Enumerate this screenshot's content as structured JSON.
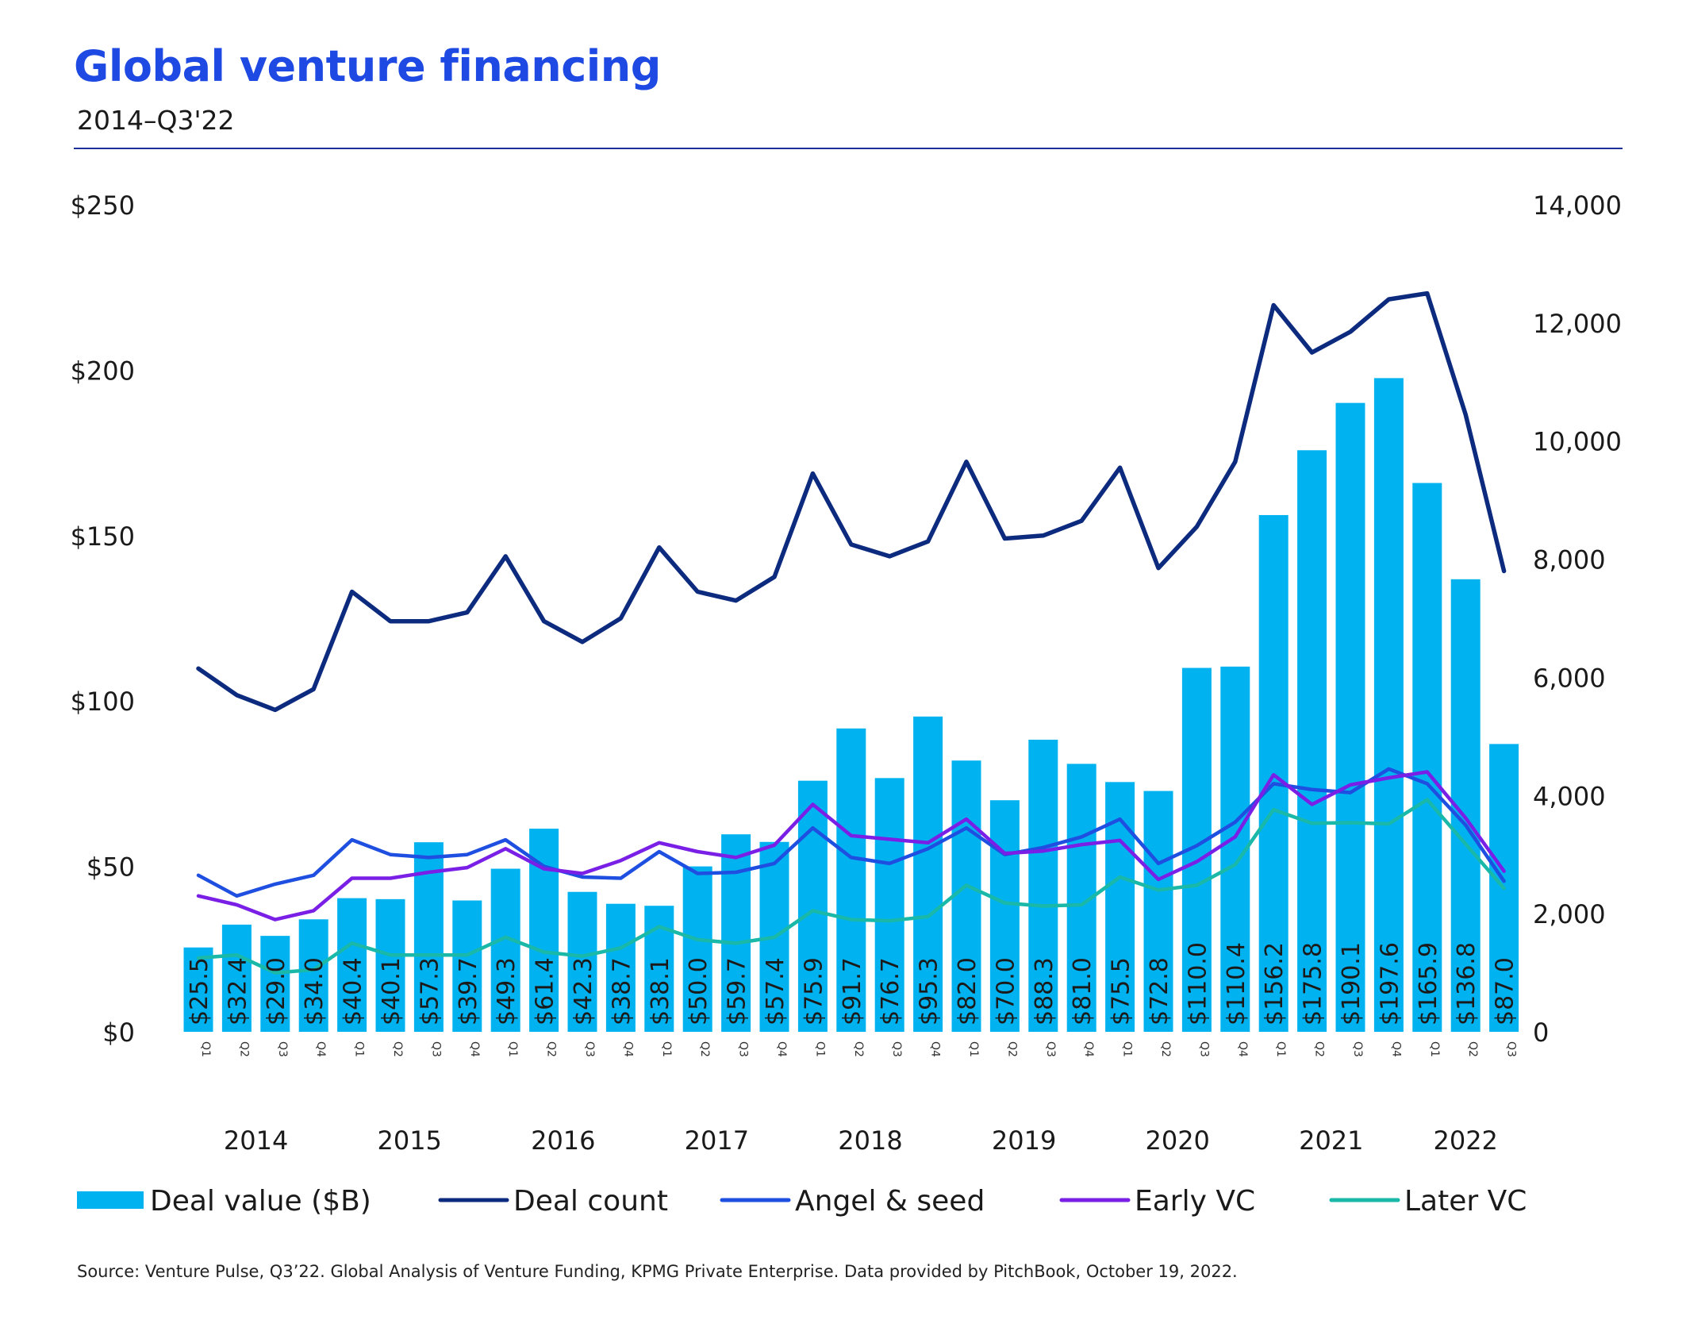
{
  "header": {
    "title": "Global venture financing",
    "subtitle": "2014–Q3'22"
  },
  "footer": {
    "source": "Source: Venture Pulse, Q3’22. Global Analysis of Venture Funding, KPMG Private Enterprise. Data provided by PitchBook, October 19, 2022."
  },
  "colors": {
    "bar": "#00b3f0",
    "deal_count": "#0c2a7e",
    "angel_seed": "#1e4fe0",
    "early_vc": "#7a1fe6",
    "later_vc": "#19b8a8"
  },
  "chart_data": {
    "type": "bar",
    "quarters": [
      "Q1",
      "Q2",
      "Q3",
      "Q4",
      "Q1",
      "Q2",
      "Q3",
      "Q4",
      "Q1",
      "Q2",
      "Q3",
      "Q4",
      "Q1",
      "Q2",
      "Q3",
      "Q4",
      "Q1",
      "Q2",
      "Q3",
      "Q4",
      "Q1",
      "Q2",
      "Q3",
      "Q4",
      "Q1",
      "Q2",
      "Q3",
      "Q4",
      "Q1",
      "Q2",
      "Q3",
      "Q4",
      "Q1",
      "Q2",
      "Q3"
    ],
    "years": [
      "2014",
      "2015",
      "2016",
      "2017",
      "2018",
      "2019",
      "2020",
      "2021",
      "2022"
    ],
    "y_left": {
      "ticks": [
        "$0",
        "$50",
        "$100",
        "$150",
        "$200",
        "$250"
      ],
      "ylim": [
        0,
        250
      ]
    },
    "y_right": {
      "ticks": [
        "0",
        "2,000",
        "4,000",
        "6,000",
        "8,000",
        "10,000",
        "12,000",
        "14,000"
      ],
      "ylim": [
        0,
        14000
      ]
    },
    "legend_position": "bottom",
    "grid": false,
    "series": [
      {
        "name": "Deal value ($B)",
        "kind": "bar",
        "axis": "left",
        "values": [
          25.5,
          32.4,
          29.0,
          34.0,
          40.4,
          40.1,
          57.3,
          39.7,
          49.3,
          61.4,
          42.3,
          38.7,
          38.1,
          50.0,
          59.7,
          57.4,
          75.9,
          91.7,
          76.7,
          95.3,
          82.0,
          70.0,
          88.3,
          81.0,
          75.5,
          72.8,
          110.0,
          110.4,
          156.2,
          175.8,
          190.1,
          197.6,
          165.9,
          136.8,
          87.0
        ],
        "labels": [
          "$25.5",
          "$32.4",
          "$29.0",
          "$34.0",
          "$40.4",
          "$40.1",
          "$57.3",
          "$39.7",
          "$49.3",
          "$61.4",
          "$42.3",
          "$38.7",
          "$38.1",
          "$50.0",
          "$59.7",
          "$57.4",
          "$75.9",
          "$91.7",
          "$76.7",
          "$95.3",
          "$82.0",
          "$70.0",
          "$88.3",
          "$81.0",
          "$75.5",
          "$72.8",
          "$110.0",
          "$110.4",
          "$156.2",
          "$175.8",
          "$190.1",
          "$197.6",
          "$165.9",
          "$136.8",
          "$87.0"
        ]
      },
      {
        "name": "Deal count",
        "kind": "line",
        "axis": "right",
        "values": [
          6150,
          5700,
          5450,
          5800,
          7450,
          6950,
          6950,
          7100,
          8050,
          6950,
          6600,
          7000,
          8200,
          7450,
          7300,
          7700,
          9450,
          8250,
          8050,
          8300,
          9650,
          8350,
          8400,
          8650,
          9550,
          7850,
          8550,
          9650,
          12300,
          11500,
          11850,
          12400,
          12500,
          10450,
          7800
        ]
      },
      {
        "name": "Angel & seed",
        "kind": "line",
        "axis": "right",
        "values": [
          2650,
          2300,
          2500,
          2650,
          3250,
          3000,
          2950,
          3000,
          3250,
          2800,
          2620,
          2600,
          3050,
          2680,
          2700,
          2850,
          3450,
          2950,
          2850,
          3100,
          3450,
          3000,
          3120,
          3300,
          3600,
          2850,
          3150,
          3550,
          4200,
          4100,
          4050,
          4450,
          4200,
          3500,
          2550
        ]
      },
      {
        "name": "Early VC",
        "kind": "line",
        "axis": "right",
        "values": [
          2300,
          2150,
          1900,
          2050,
          2600,
          2600,
          2700,
          2780,
          3100,
          2760,
          2680,
          2900,
          3200,
          3050,
          2950,
          3160,
          3850,
          3320,
          3260,
          3200,
          3600,
          3020,
          3060,
          3170,
          3240,
          2580,
          2880,
          3300,
          4350,
          3850,
          4180,
          4300,
          4400,
          3620,
          2720
        ]
      },
      {
        "name": "Later VC",
        "kind": "line",
        "axis": "right",
        "values": [
          1250,
          1300,
          1000,
          1050,
          1500,
          1300,
          1300,
          1300,
          1600,
          1350,
          1280,
          1420,
          1780,
          1560,
          1500,
          1600,
          2050,
          1900,
          1880,
          1950,
          2480,
          2180,
          2130,
          2150,
          2620,
          2400,
          2480,
          2830,
          3760,
          3530,
          3540,
          3520,
          3930,
          3180,
          2430
        ]
      }
    ]
  }
}
